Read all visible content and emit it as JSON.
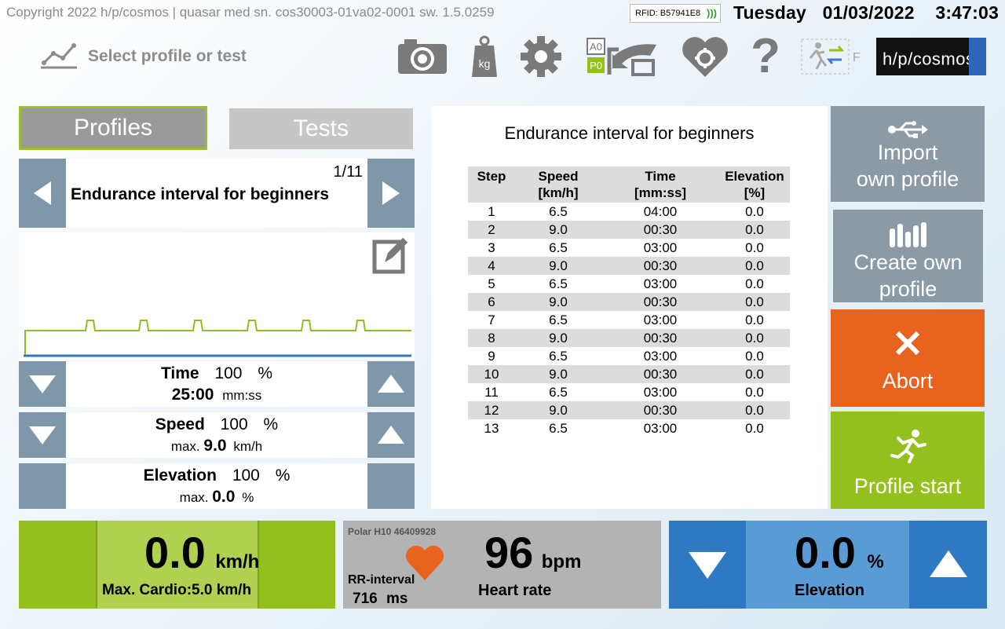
{
  "header": {
    "copyright": "Copyright 2022 h/p/cosmos | quasar  med  sn. cos30003-01va02-0001  sw. 1.5.0259",
    "rfid": "RFID: B57941E8",
    "day": "Tuesday",
    "date": "01/03/2022",
    "time": "3:47:03 PM"
  },
  "page_title": "Select profile or test",
  "toolbar": {
    "icons": [
      "camera-icon",
      "weight-kg-icon",
      "settings-gear-icon",
      "a0-p0-reset-icon",
      "heart-settings-icon",
      "help-icon",
      "runner-direction-icon"
    ],
    "weight_unit": "kg",
    "a0_label": "A0",
    "p0_label": "P0",
    "help_glyph": "?",
    "direction_label": "F",
    "logo_text": "h/p/cosmos",
    "logo_reg": "®"
  },
  "tabs": {
    "profiles": "Profiles",
    "tests": "Tests"
  },
  "profile": {
    "counter": "1/11",
    "name": "Endurance interval for beginners"
  },
  "adjust": {
    "time": {
      "label": "Time",
      "percent": "100",
      "pct_sign": "%",
      "value": "25:00",
      "unit": "mm:ss"
    },
    "speed": {
      "label": "Speed",
      "percent": "100",
      "pct_sign": "%",
      "prefix": "max.",
      "value": "9.0",
      "unit": "km/h"
    },
    "elevation": {
      "label": "Elevation",
      "percent": "100",
      "pct_sign": "%",
      "prefix": "max.",
      "value": "0.0",
      "unit": "%"
    }
  },
  "table": {
    "title": "Endurance interval for beginners",
    "headers": [
      {
        "line1": "Step",
        "line2": ""
      },
      {
        "line1": "Speed",
        "line2": "[km/h]"
      },
      {
        "line1": "Time",
        "line2": "[mm:ss]"
      },
      {
        "line1": "Elevation",
        "line2": "[%]"
      }
    ],
    "rows": [
      [
        "1",
        "6.5",
        "04:00",
        "0.0"
      ],
      [
        "2",
        "9.0",
        "00:30",
        "0.0"
      ],
      [
        "3",
        "6.5",
        "03:00",
        "0.0"
      ],
      [
        "4",
        "9.0",
        "00:30",
        "0.0"
      ],
      [
        "5",
        "6.5",
        "03:00",
        "0.0"
      ],
      [
        "6",
        "9.0",
        "00:30",
        "0.0"
      ],
      [
        "7",
        "6.5",
        "03:00",
        "0.0"
      ],
      [
        "8",
        "9.0",
        "00:30",
        "0.0"
      ],
      [
        "9",
        "6.5",
        "03:00",
        "0.0"
      ],
      [
        "10",
        "9.0",
        "00:30",
        "0.0"
      ],
      [
        "11",
        "6.5",
        "03:00",
        "0.0"
      ],
      [
        "12",
        "9.0",
        "00:30",
        "0.0"
      ],
      [
        "13",
        "6.5",
        "03:00",
        "0.0"
      ]
    ]
  },
  "actions": {
    "import_line1": "Import",
    "import_line2": "own profile",
    "create_line1": "Create own",
    "create_line2": "profile",
    "abort": "Abort",
    "start": "Profile start"
  },
  "status": {
    "speed_value": "0.0",
    "speed_unit": "km/h",
    "speed_caption": "Max. Cardio:5.0 km/h",
    "hr_device": "Polar H10 46409928",
    "rr_label": "RR-interval",
    "rr_value": "716",
    "rr_unit": "ms",
    "hr_value": "96",
    "hr_unit": "bpm",
    "hr_caption": "Heart rate",
    "elev_value": "0.0",
    "elev_unit": "%",
    "elev_caption": "Elevation"
  },
  "colors": {
    "green": "#93c01f",
    "orange": "#e8641e",
    "blue": "#2f78c2",
    "grey_button": "#8c9aa5",
    "nav_button": "#7f98a9",
    "profile_line": "#8fbf1c",
    "elevation_line": "#2f78c2"
  }
}
